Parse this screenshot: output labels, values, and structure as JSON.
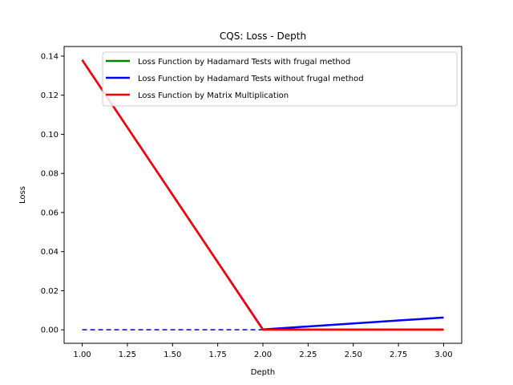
{
  "chart_data": {
    "type": "line",
    "title": "CQS: Loss - Depth",
    "xlabel": "Depth",
    "ylabel": "Loss",
    "xlim": [
      0.9,
      3.1
    ],
    "ylim": [
      -0.0069,
      0.1449
    ],
    "xticks": [
      1.0,
      1.25,
      1.5,
      1.75,
      2.0,
      2.25,
      2.5,
      2.75,
      3.0
    ],
    "xtick_labels": [
      "1.00",
      "1.25",
      "1.50",
      "1.75",
      "2.00",
      "2.25",
      "2.50",
      "2.75",
      "3.00"
    ],
    "yticks": [
      0.0,
      0.02,
      0.04,
      0.06,
      0.08,
      0.1,
      0.12,
      0.14
    ],
    "ytick_labels": [
      "0.00",
      "0.02",
      "0.04",
      "0.06",
      "0.08",
      "0.10",
      "0.12",
      "0.14"
    ],
    "grid": false,
    "legend_position": "top-right",
    "x": [
      1,
      2,
      3
    ],
    "series": [
      {
        "name": "Loss Function by Hadamard Tests with frugal method",
        "color": "#008000",
        "values": [
          0.138,
          0.0002,
          0.0002
        ],
        "style": "solid"
      },
      {
        "name": "Loss Function by Hadamard Tests without frugal method",
        "color": "#0000ff",
        "values": [
          0.138,
          0.0002,
          0.0063
        ],
        "style": "solid"
      },
      {
        "name": "Loss Function by Matrix Multiplication",
        "color": "#ff0000",
        "values": [
          0.138,
          0.0,
          0.0
        ],
        "style": "solid"
      }
    ],
    "reference_line": {
      "color": "#0000cc",
      "style": "dashed",
      "x": [
        1,
        2
      ],
      "values": [
        0.0,
        0.0
      ]
    }
  }
}
